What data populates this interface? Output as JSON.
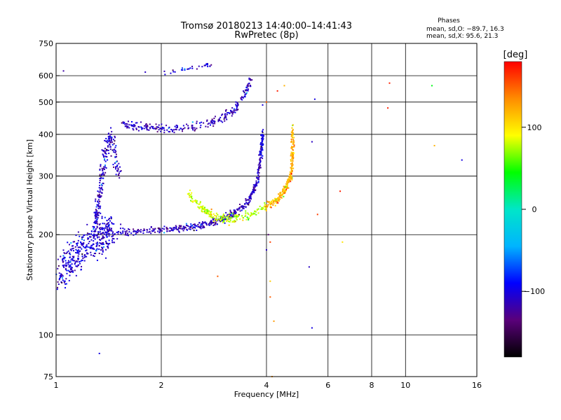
{
  "chart_data": {
    "type": "scatter",
    "title": "Tromsø 20180213 14:40:00–14:41:43",
    "subtitle": "RwPretec (8p)",
    "xlabel": "Frequency [MHz]",
    "ylabel": "Stationary phase Virtual Height [km]",
    "x_scale": "log",
    "y_scale": "log",
    "xlim": [
      1,
      16
    ],
    "ylim": [
      75,
      750
    ],
    "x_ticks": [
      1,
      2,
      4,
      6,
      8,
      10,
      16
    ],
    "y_ticks": [
      75,
      100,
      200,
      300,
      400,
      500,
      600,
      750
    ],
    "x_gridlines": [
      2,
      4,
      6,
      8,
      10
    ],
    "y_gridlines": [
      100,
      200,
      300,
      400,
      500,
      600
    ],
    "grid": true,
    "legend_header": "Phases",
    "legend_lines": [
      "mean, sd,O: −89.7, 16.3",
      "mean, sd,X:  95.6, 21.3"
    ],
    "colorbar": {
      "label": "[deg]",
      "range": [
        -180,
        180
      ],
      "ticks": [
        100,
        0,
        -100
      ],
      "tick_labels": [
        "100",
        "0",
        "−100"
      ],
      "stops": [
        "#000000",
        "#5a007a",
        "#0000ff",
        "#00b4ff",
        "#00e6c8",
        "#00ff00",
        "#ffff00",
        "#ff8c00",
        "#ff0000"
      ]
    },
    "series": [
      {
        "comment_trace": "O-trace, bluish phases (~-100 deg)",
        "traces": [
          {
            "f": [
              1.02,
              1.08,
              1.15,
              1.22,
              1.3,
              1.38,
              1.45
            ],
            "h": [
              150,
              165,
              175,
              185,
              195,
              200,
              205
            ],
            "phase": -105,
            "spread": 0.12,
            "n": 420
          },
          {
            "f": [
              1.3,
              1.33,
              1.36,
              1.4,
              1.45,
              1.5
            ],
            "h": [
              220,
              260,
              310,
              370,
              400,
              300
            ],
            "phase": -110,
            "spread": 0.06,
            "n": 220
          },
          {
            "f": [
              1.5,
              1.8,
              2.2,
              2.6,
              3.0,
              3.3,
              3.55,
              3.75,
              3.85
            ],
            "h": [
              203,
              205,
              208,
              213,
              222,
              235,
              252,
              285,
              340
            ],
            "phase": -112,
            "spread": 0.025,
            "n": 420
          },
          {
            "f": [
              3.85,
              3.88,
              3.9
            ],
            "h": [
              340,
              370,
              400
            ],
            "phase": -100,
            "spread": 0.03,
            "n": 70
          },
          {
            "f": [
              1.55,
              1.8,
              2.1,
              2.5,
              2.9,
              3.2,
              3.45,
              3.6
            ],
            "h": [
              430,
              420,
              415,
              420,
              440,
              470,
              520,
              580
            ],
            "phase": -112,
            "spread": 0.03,
            "n": 260
          },
          {
            "f": [
              2.0,
              2.3,
              2.6,
              2.8
            ],
            "h": [
              610,
              625,
              640,
              650
            ],
            "phase": -105,
            "spread": 0.015,
            "n": 30
          }
        ]
      },
      {
        "comment_trace": "X-trace, yellow/orange phases (~95 deg)",
        "traces": [
          {
            "f": [
              2.4,
              2.6,
              2.8,
              3.1,
              3.4,
              3.7,
              4.0
            ],
            "h": [
              265,
              240,
              228,
              222,
              225,
              233,
              242
            ],
            "phase": 80,
            "spread": 0.03,
            "n": 200
          },
          {
            "f": [
              4.0,
              4.3,
              4.55,
              4.7,
              4.75,
              4.75
            ],
            "h": [
              242,
              255,
              275,
              300,
              340,
              420
            ],
            "phase": 120,
            "spread": 0.03,
            "n": 240
          }
        ]
      }
    ],
    "scattered_points": [
      {
        "f": 1.05,
        "h": 620,
        "phase": -120
      },
      {
        "f": 1.8,
        "h": 615,
        "phase": -110
      },
      {
        "f": 2.05,
        "h": 605,
        "phase": -100
      },
      {
        "f": 1.33,
        "h": 88,
        "phase": -100
      },
      {
        "f": 5.4,
        "h": 105,
        "phase": -100
      },
      {
        "f": 5.5,
        "h": 510,
        "phase": -100
      },
      {
        "f": 5.4,
        "h": 380,
        "phase": -110
      },
      {
        "f": 6.5,
        "h": 270,
        "phase": 170
      },
      {
        "f": 6.6,
        "h": 190,
        "phase": 100
      },
      {
        "f": 5.6,
        "h": 230,
        "phase": 160
      },
      {
        "f": 9.0,
        "h": 570,
        "phase": 170
      },
      {
        "f": 8.9,
        "h": 480,
        "phase": 170
      },
      {
        "f": 11.9,
        "h": 560,
        "phase": 40
      },
      {
        "f": 12.1,
        "h": 370,
        "phase": 120
      },
      {
        "f": 14.5,
        "h": 335,
        "phase": -100
      },
      {
        "f": 2.9,
        "h": 150,
        "phase": 150
      },
      {
        "f": 4.1,
        "h": 145,
        "phase": 110
      },
      {
        "f": 4.1,
        "h": 190,
        "phase": 160
      },
      {
        "f": 4.05,
        "h": 200,
        "phase": -140
      },
      {
        "f": 4.1,
        "h": 130,
        "phase": 150
      },
      {
        "f": 4.15,
        "h": 75,
        "phase": 130
      },
      {
        "f": 4.5,
        "h": 560,
        "phase": 120
      },
      {
        "f": 4.3,
        "h": 540,
        "phase": 170
      },
      {
        "f": 4.0,
        "h": 500,
        "phase": 150
      },
      {
        "f": 3.9,
        "h": 490,
        "phase": -100
      },
      {
        "f": 4.0,
        "h": 180,
        "phase": -110
      },
      {
        "f": 4.2,
        "h": 110,
        "phase": 130
      },
      {
        "f": 5.3,
        "h": 160,
        "phase": -110
      }
    ]
  }
}
